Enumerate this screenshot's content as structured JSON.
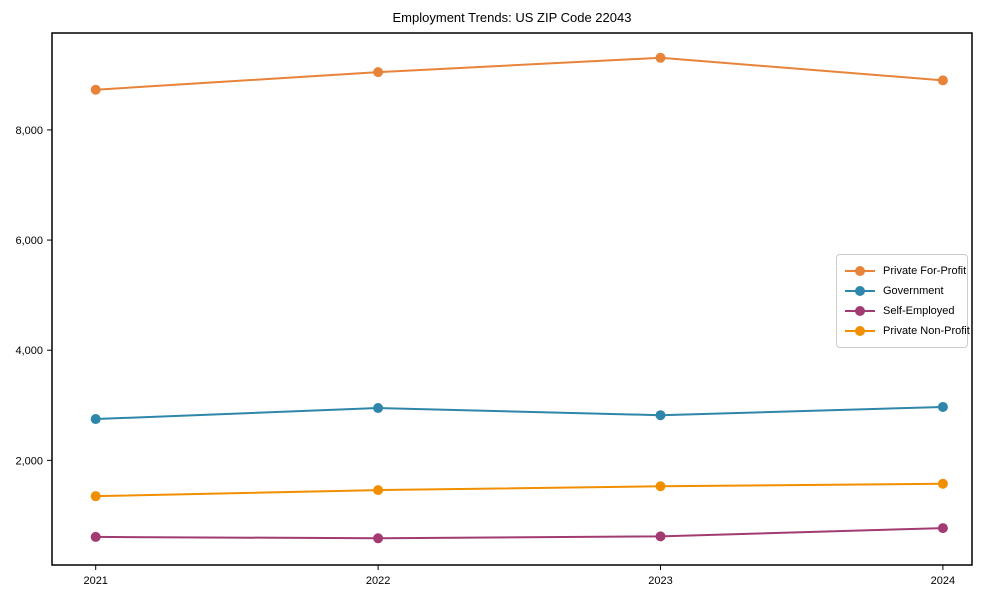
{
  "chart_data": {
    "type": "line",
    "title": "Employment Trends: US ZIP Code 22043",
    "categories": [
      "2021",
      "2022",
      "2023",
      "2024"
    ],
    "series": [
      {
        "name": "Private For-Profit",
        "color": "#e8833a",
        "values": [
          8730,
          9050,
          9310,
          8900
        ]
      },
      {
        "name": "Government",
        "color": "#2e86ab",
        "values": [
          2750,
          2950,
          2820,
          2970
        ]
      },
      {
        "name": "Self-Employed",
        "color": "#a23b72",
        "values": [
          610,
          585,
          620,
          770
        ]
      },
      {
        "name": "Private Non-Profit",
        "color": "#f18f01",
        "values": [
          1350,
          1460,
          1530,
          1575
        ]
      }
    ],
    "yticks": [
      2000,
      4000,
      6000,
      8000
    ],
    "ytick_labels": [
      "2,000",
      "4,000",
      "6,000",
      "8,000"
    ],
    "ylim": [
      100,
      9760
    ],
    "xlabel": "",
    "ylabel": "",
    "grid": false,
    "legend_position": "right-middle",
    "axis_color": "#000000"
  }
}
